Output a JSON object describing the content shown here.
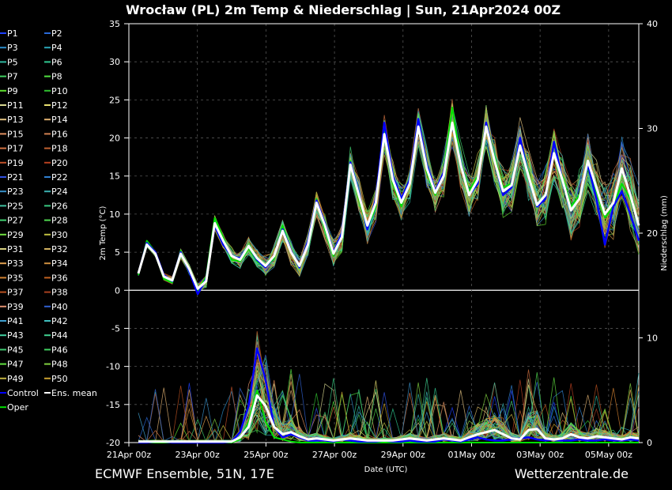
{
  "chart_data": {
    "type": "line",
    "title": "Wrocław  (PL)  2m Temp & Niederschlag | Sun, 21Apr2024 00Z",
    "xlabel": "Date (UTC)",
    "ylabel": "2m Temp (°C)",
    "y2label": "Niederschlag (mm)",
    "ylim": [
      -20,
      35
    ],
    "y2lim": [
      0,
      40
    ],
    "y_ticks": [
      "35",
      "30",
      "25",
      "20",
      "15",
      "10",
      "5",
      "0",
      "-5",
      "-10",
      "-15",
      "-20"
    ],
    "y2_ticks": [
      "40",
      "30",
      "20",
      "10",
      "0"
    ],
    "x_ticks": [
      "21Apr 00z",
      "23Apr 00z",
      "25Apr 00z",
      "27Apr 00z",
      "29Apr 00z",
      "01May 00z",
      "03May 00z",
      "05May 00z"
    ],
    "grid": true,
    "legend_placement": "left",
    "legend": [
      "P1",
      "P2",
      "P3",
      "P4",
      "P5",
      "P6",
      "P7",
      "P8",
      "P9",
      "P10",
      "P11",
      "P12",
      "P13",
      "P14",
      "P15",
      "P16",
      "P17",
      "P18",
      "P19",
      "P20",
      "P21",
      "P22",
      "P23",
      "P24",
      "P25",
      "P26",
      "P27",
      "P28",
      "P29",
      "P30",
      "P31",
      "P32",
      "P33",
      "P34",
      "P35",
      "P36",
      "P37",
      "P38",
      "P39",
      "P40",
      "P41",
      "P42",
      "P43",
      "P44",
      "P45",
      "P46",
      "P47",
      "P48",
      "P49",
      "P50",
      "Control",
      "Ens. mean",
      "Oper"
    ],
    "legend_colors": [
      "#1e40ff",
      "#2a6ad8",
      "#2a8cc8",
      "#2aa6b8",
      "#30b8a0",
      "#30c890",
      "#40d060",
      "#50e040",
      "#60e030",
      "#30c030",
      "#d8d890",
      "#e8e070",
      "#e0c080",
      "#e0b070",
      "#e09060",
      "#d08050",
      "#d07040",
      "#c06030",
      "#c05028",
      "#b84020",
      "#3050e0",
      "#3080d0",
      "#3890c8",
      "#3ab0b0",
      "#40c0a0",
      "#38c880",
      "#40d070",
      "#50d850",
      "#70e040",
      "#c0c040",
      "#d8d080",
      "#d0b060",
      "#e0a050",
      "#d09040",
      "#d08030",
      "#c06020",
      "#b85020",
      "#a84020",
      "#e09070",
      "#3060d0",
      "#40a0d0",
      "#40c0c0",
      "#40d0a0",
      "#40d090",
      "#40c870",
      "#40d060",
      "#60e040",
      "#80d040",
      "#c0b040",
      "#c8a030",
      "#0000ff",
      "#ffffff",
      "#00e000"
    ],
    "x_step_hours": 6,
    "ens_mean_temp": [
      2.2,
      6.0,
      4.8,
      1.8,
      1.3,
      4.8,
      2.8,
      0.2,
      1.2,
      8.8,
      6.5,
      4.5,
      4.0,
      5.8,
      4.2,
      3.2,
      4.5,
      7.8,
      5.0,
      3.2,
      6.0,
      11.5,
      8.5,
      4.8,
      7.0,
      16.5,
      12.5,
      8.5,
      11.5,
      20.5,
      14.5,
      11.5,
      14.0,
      21.5,
      16.0,
      12.8,
      15.0,
      22.0,
      16.5,
      12.5,
      14.5,
      21.5,
      17.0,
      13.0,
      13.8,
      19.0,
      15.0,
      11.2,
      12.5,
      18.0,
      14.5,
      10.5,
      12.0,
      17.0,
      13.5,
      10.0,
      11.5,
      16.0,
      12.5,
      8.5
    ],
    "control_temp": [
      2.2,
      6.2,
      5.0,
      2.0,
      1.2,
      5.0,
      2.5,
      -0.5,
      1.5,
      8.5,
      6.0,
      4.5,
      4.2,
      5.8,
      4.0,
      3.0,
      4.5,
      8.0,
      5.2,
      3.0,
      6.5,
      11.8,
      8.8,
      5.0,
      7.5,
      16.8,
      12.8,
      8.0,
      12.0,
      22.0,
      15.0,
      12.0,
      14.5,
      22.5,
      16.5,
      13.0,
      15.5,
      22.0,
      16.8,
      12.5,
      14.0,
      22.0,
      17.0,
      12.5,
      13.5,
      20.0,
      15.0,
      11.0,
      12.0,
      19.5,
      14.5,
      10.5,
      12.0,
      16.5,
      12.0,
      6.0,
      11.0,
      13.0,
      10.0,
      6.5
    ],
    "oper_temp": [
      2.0,
      6.5,
      5.0,
      1.5,
      1.0,
      5.2,
      2.5,
      0.0,
      1.8,
      9.5,
      7.0,
      4.0,
      3.8,
      5.5,
      3.8,
      3.0,
      4.2,
      8.5,
      5.0,
      3.0,
      6.2,
      12.0,
      8.0,
      4.5,
      7.5,
      17.0,
      12.0,
      8.0,
      11.0,
      21.5,
      14.0,
      11.0,
      14.5,
      22.0,
      15.5,
      12.5,
      15.5,
      24.0,
      17.0,
      13.0,
      15.0,
      22.0,
      17.5,
      13.5,
      14.0,
      20.0,
      15.5,
      11.0,
      12.5,
      18.0,
      15.0,
      11.0,
      12.5,
      16.0,
      13.0,
      9.5,
      11.0,
      14.0,
      12.0,
      8.5
    ],
    "ens_mean_precip": [
      0.1,
      0.1,
      0.1,
      0.1,
      0.1,
      0.1,
      0.1,
      0.1,
      0.1,
      0.1,
      0.1,
      0.1,
      0.5,
      1.5,
      4.5,
      3.5,
      1.5,
      0.8,
      1.0,
      0.6,
      0.3,
      0.4,
      0.3,
      0.2,
      0.3,
      0.4,
      0.3,
      0.2,
      0.2,
      0.2,
      0.2,
      0.3,
      0.4,
      0.3,
      0.2,
      0.3,
      0.4,
      0.3,
      0.2,
      0.5,
      0.8,
      1.0,
      1.2,
      0.8,
      0.4,
      0.3,
      1.2,
      1.3,
      0.4,
      0.3,
      0.4,
      0.8,
      0.5,
      0.4,
      0.6,
      0.5,
      0.4,
      0.3,
      0.5,
      0.4
    ],
    "control_precip": [
      0.0,
      0.0,
      0.1,
      0.1,
      0.0,
      0.0,
      0.0,
      0.0,
      0.0,
      0.0,
      0.0,
      0.1,
      1.0,
      3.5,
      9.0,
      6.0,
      1.5,
      0.5,
      0.8,
      0.5,
      0.2,
      0.2,
      0.2,
      0.1,
      0.3,
      0.2,
      0.1,
      0.1,
      0.1,
      0.2,
      0.1,
      0.1,
      0.2,
      0.1,
      0.1,
      0.1,
      0.3,
      0.2,
      0.1,
      0.3,
      0.5,
      0.3,
      0.2,
      0.2,
      0.3,
      0.4,
      0.5,
      0.3,
      0.2,
      0.3,
      0.2,
      0.2,
      0.3,
      0.2,
      0.2,
      0.3,
      0.2,
      0.2,
      0.3,
      0.2
    ],
    "oper_precip": [
      0.0,
      0.0,
      0.0,
      0.0,
      0.0,
      0.0,
      0.0,
      0.0,
      0.0,
      0.0,
      0.0,
      0.0,
      0.3,
      2.0,
      5.0,
      2.0,
      0.5,
      0.3,
      0.1,
      0.0,
      0.0,
      0.0,
      0.0,
      0.0,
      0.0,
      0.0,
      0.0,
      0.0,
      0.0,
      0.0,
      0.0,
      0.0,
      0.0,
      0.0,
      0.0,
      0.0,
      0.0,
      0.0,
      0.0,
      0.0,
      0.0,
      0.0,
      0.0,
      0.0,
      0.0,
      0.0,
      0.0,
      0.0,
      0.0,
      0.0,
      0.0,
      0.0,
      0.0,
      0.0,
      0.0,
      0.0,
      0.0,
      0.0,
      0.0,
      0.0
    ],
    "members_note_colors": [
      "#2050e0",
      "#30a0d0",
      "#30c0a0",
      "#40d060",
      "#60e040",
      "#c8c040",
      "#e0b060",
      "#e08040",
      "#c05030",
      "#a04020"
    ]
  },
  "footer": {
    "left": "ECMWF Ensemble, 51N, 17E",
    "right": "Wetterzentrale.de"
  }
}
